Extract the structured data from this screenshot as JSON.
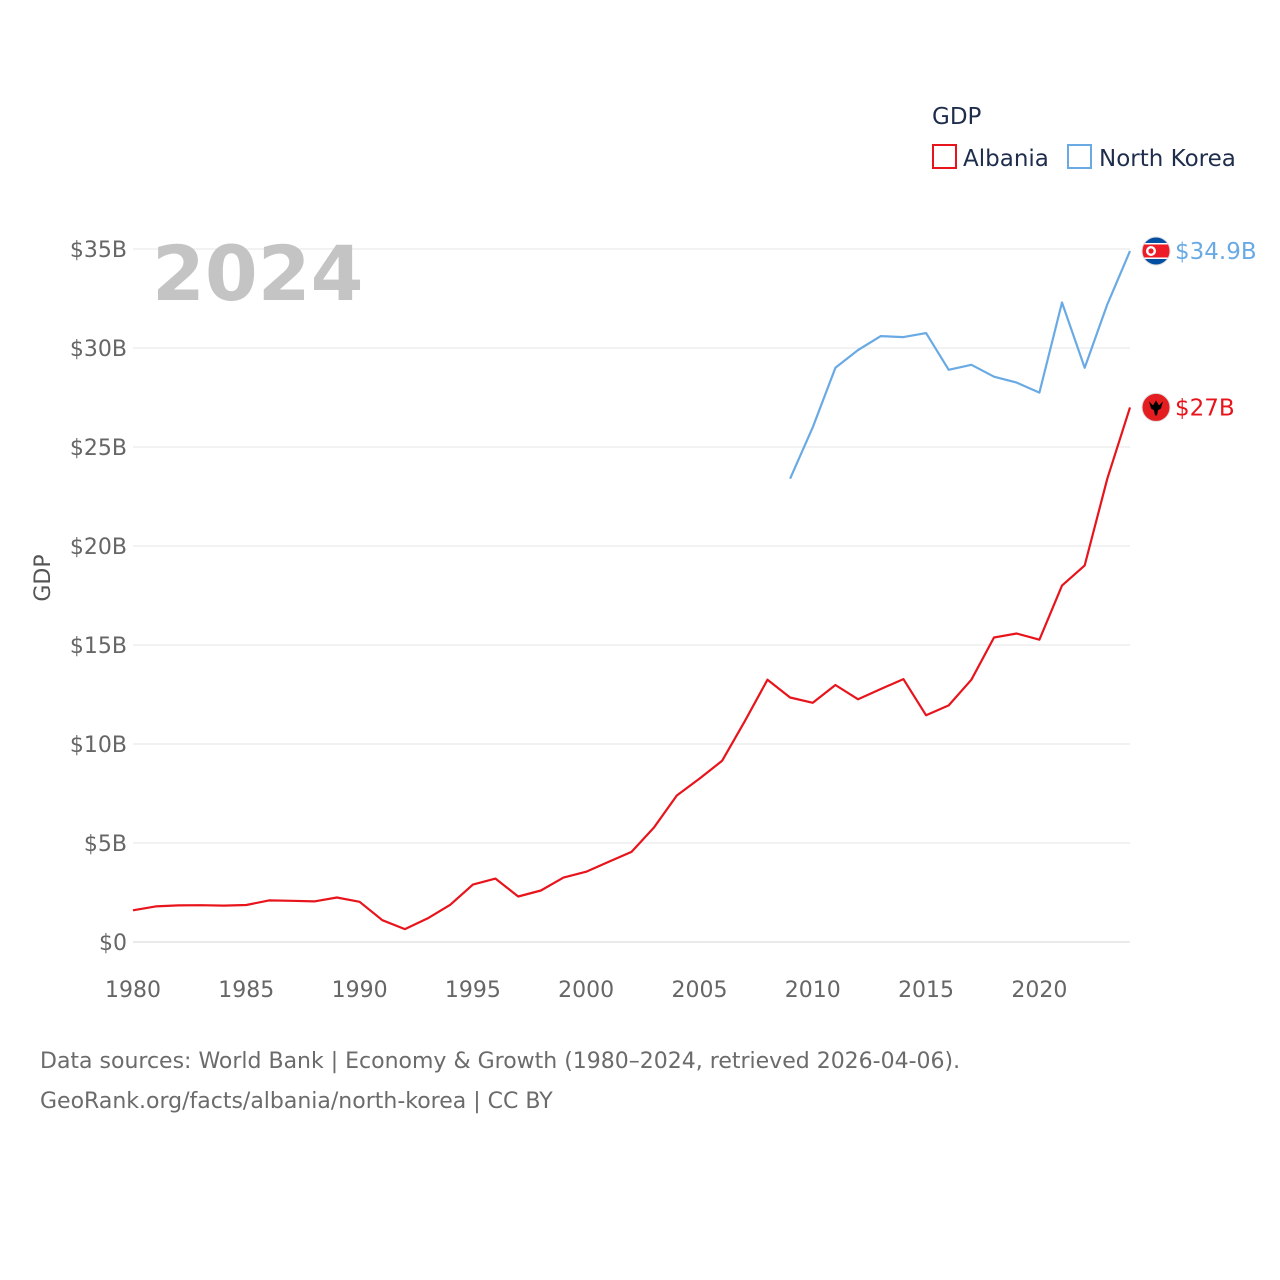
{
  "chart_data": {
    "type": "line",
    "title": "GDP",
    "highlight_year": "2024",
    "ylabel": "GDP",
    "xlabel": "",
    "xlim": [
      1980,
      2024
    ],
    "ylim": [
      0,
      35
    ],
    "x_ticks": [
      1980,
      1985,
      1990,
      1995,
      2000,
      2005,
      2010,
      2015,
      2020
    ],
    "y_ticks": [
      0,
      5,
      10,
      15,
      20,
      25,
      30,
      35
    ],
    "y_tick_labels": [
      "$0",
      "$5B",
      "$10B",
      "$15B",
      "$20B",
      "$25B",
      "$30B",
      "$35B"
    ],
    "units": "billion USD",
    "legend_position": "top-right",
    "series": [
      {
        "name": "Albania",
        "color": "#e8141c",
        "flag_icon": "albania-flag-icon",
        "end_label": "$27B",
        "x": [
          1980,
          1981,
          1982,
          1983,
          1984,
          1985,
          1986,
          1987,
          1988,
          1989,
          1990,
          1991,
          1992,
          1993,
          1994,
          1995,
          1996,
          1997,
          1998,
          1999,
          2000,
          2001,
          2002,
          2003,
          2004,
          2005,
          2006,
          2007,
          2008,
          2009,
          2010,
          2011,
          2012,
          2013,
          2014,
          2015,
          2016,
          2017,
          2018,
          2019,
          2020,
          2021,
          2022,
          2023,
          2024
        ],
        "values": [
          1.6,
          1.8,
          1.85,
          1.86,
          1.84,
          1.87,
          2.1,
          2.08,
          2.05,
          2.25,
          2.03,
          1.1,
          0.65,
          1.19,
          1.88,
          2.9,
          3.2,
          2.3,
          2.6,
          3.25,
          3.55,
          4.05,
          4.55,
          5.8,
          7.4,
          8.25,
          9.15,
          11.15,
          13.25,
          12.35,
          12.08,
          12.98,
          12.26,
          12.78,
          13.28,
          11.45,
          11.95,
          13.25,
          15.38,
          15.58,
          15.27,
          18.0,
          19.02,
          23.4,
          27.0
        ]
      },
      {
        "name": "North Korea",
        "color": "#6aaae4",
        "flag_icon": "north-korea-flag-icon",
        "end_label": "$34.9B",
        "x": [
          2009,
          2010,
          2011,
          2012,
          2013,
          2014,
          2015,
          2016,
          2017,
          2018,
          2019,
          2020,
          2021,
          2022,
          2023,
          2024
        ],
        "values": [
          23.4,
          26.0,
          29.0,
          29.9,
          30.6,
          30.55,
          30.75,
          28.9,
          29.15,
          28.55,
          28.25,
          27.75,
          32.3,
          29.0,
          32.2,
          34.9
        ]
      }
    ]
  },
  "footer": {
    "line1": "Data sources: World Bank | Economy & Growth (1980–2024, retrieved 2026-04-06).",
    "line2": "GeoRank.org/facts/albania/north-korea | CC BY"
  }
}
